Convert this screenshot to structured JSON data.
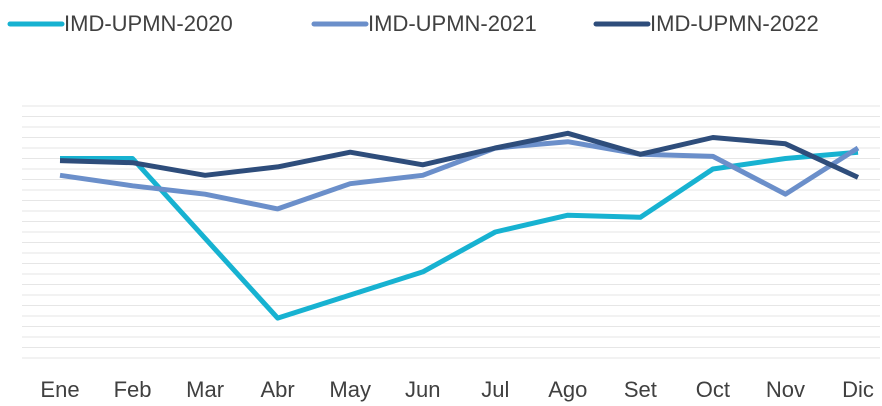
{
  "chart_data": {
    "type": "line",
    "categories": [
      "Ene",
      "Feb",
      "Mar",
      "Abr",
      "May",
      "Jun",
      "Jul",
      "Ago",
      "Set",
      "Oct",
      "Nov",
      "Dic"
    ],
    "series": [
      {
        "name": "IMD-UPMN-2020",
        "color": "#17b2d1",
        "values": [
          9.5,
          9.5,
          5.7,
          1.9,
          3.0,
          4.1,
          6.0,
          6.8,
          6.7,
          9.0,
          9.5,
          9.8
        ]
      },
      {
        "name": "IMD-UPMN-2021",
        "color": "#6b8fca",
        "values": [
          8.7,
          8.2,
          7.8,
          7.1,
          8.3,
          8.7,
          10.0,
          10.3,
          9.7,
          9.6,
          7.8,
          10.0
        ]
      },
      {
        "name": "IMD-UPMN-2022",
        "color": "#2e4d7b",
        "values": [
          9.4,
          9.3,
          8.7,
          9.1,
          9.8,
          9.2,
          10.0,
          10.7,
          9.7,
          10.5,
          10.2,
          8.6
        ]
      }
    ],
    "ylim": [
      0,
      12
    ],
    "yticks": [
      0,
      0.5,
      1,
      1.5,
      2,
      2.5,
      3,
      3.5,
      4,
      4.5,
      5,
      5.5,
      6,
      6.5,
      7,
      7.5,
      8,
      8.5,
      9,
      9.5,
      10,
      10.5,
      11,
      11.5,
      12
    ],
    "grid": true,
    "legend": "top"
  }
}
